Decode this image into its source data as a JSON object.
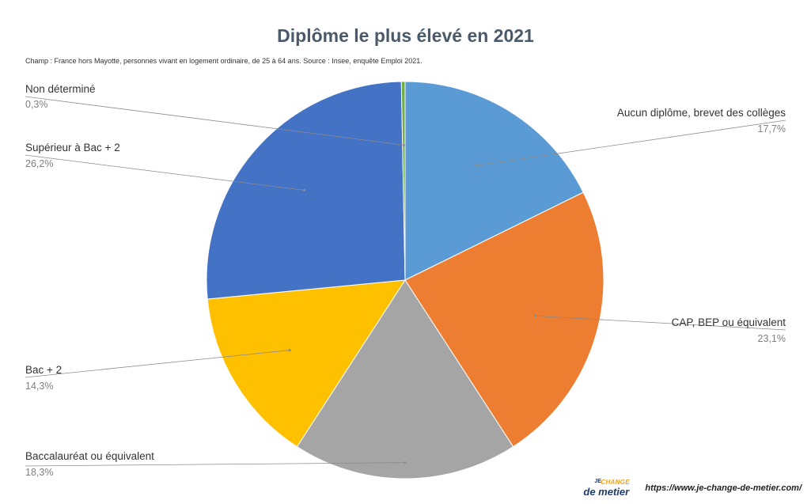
{
  "chart_data": {
    "type": "pie",
    "title": "Diplôme le plus élevé en 2021",
    "subtitle": "Champ : France hors Mayotte, personnes vivant en logement ordinaire, de 25 à 64 ans. Source : Insee, enquête Emploi 2021.",
    "slices": [
      {
        "label": "Aucun diplôme, brevet des collèges",
        "value": 17.7,
        "value_label": "17,7%",
        "color": "#5b9bd5"
      },
      {
        "label": "CAP, BEP ou équivalent",
        "value": 23.1,
        "value_label": "23,1%",
        "color": "#ed7d31"
      },
      {
        "label": "Baccalauréat ou équivalent",
        "value": 18.3,
        "value_label": "18,3%",
        "color": "#a5a5a5"
      },
      {
        "label": "Bac + 2",
        "value": 14.3,
        "value_label": "14,3%",
        "color": "#ffc000"
      },
      {
        "label": "Supérieur à Bac + 2",
        "value": 26.2,
        "value_label": "26,2%",
        "color": "#4472c4"
      },
      {
        "label": "Non déterminé",
        "value": 0.3,
        "value_label": "0,3%",
        "color": "#70ad47"
      }
    ],
    "start_angle": "12 o'clock",
    "direction": "clockwise",
    "legend": "none"
  },
  "footer": {
    "logo_top": "CHANGE",
    "logo_je": "JE",
    "logo_bottom": "de metier",
    "url": "https://www.je-change-de-metier.com/"
  }
}
